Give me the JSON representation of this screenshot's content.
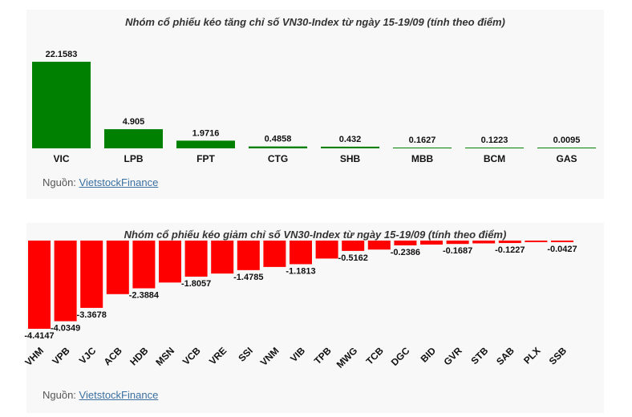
{
  "charts": [
    {
      "id": "top",
      "title": "Nhóm cổ phiếu kéo tăng chỉ số VN30-Index từ ngày 15-19/09 (tính theo điểm)",
      "source_prefix": "Nguồn: ",
      "source_link": "VietstockFinance"
    },
    {
      "id": "bottom",
      "title": "Nhóm cổ phiếu kéo giảm chỉ số VN30-Index từ ngày 15-19/09 (tính theo điểm)",
      "source_prefix": "Nguồn: ",
      "source_link": "VietstockFinance"
    }
  ],
  "chart_data": [
    {
      "type": "bar",
      "title": "Nhóm cổ phiếu kéo tăng chỉ số VN30-Index từ ngày 15-19/09 (tính theo điểm)",
      "categories": [
        "VIC",
        "LPB",
        "FPT",
        "CTG",
        "SHB",
        "MBB",
        "BCM",
        "GAS"
      ],
      "values": [
        22.1583,
        4.905,
        1.9716,
        0.4858,
        0.432,
        0.1627,
        0.1223,
        0.0095
      ],
      "labels": [
        "22.1583",
        "4.905",
        "1.9716",
        "0.4858",
        "0.432",
        "0.1627",
        "0.1223",
        "0.0095"
      ],
      "color": "#008000",
      "ylim": [
        0,
        22.1583
      ],
      "grid": false,
      "legend": "none"
    },
    {
      "type": "bar",
      "title": "Nhóm cổ phiếu kéo giảm chỉ số VN30-Index từ ngày 15-19/09 (tính theo điểm)",
      "categories": [
        "VHM",
        "VPB",
        "VJC",
        "ACB",
        "HDB",
        "MSN",
        "VCB",
        "VRE",
        "SSI",
        "VNM",
        "VIB",
        "TPB",
        "MWG",
        "TCB",
        "DGC",
        "BID",
        "GVR",
        "STB",
        "SAB",
        "PLX",
        "SSB"
      ],
      "values": [
        -4.4147,
        -4.0349,
        -3.3678,
        -2.68,
        -2.3884,
        -2.1,
        -1.8057,
        -1.65,
        -1.4785,
        -1.32,
        -1.1813,
        -0.9,
        -0.5162,
        -0.45,
        -0.2386,
        -0.2,
        -0.1687,
        -0.14,
        -0.1227,
        -0.07,
        -0.0427
      ],
      "labels": [
        "-4.4147",
        "-4.0349",
        "-3.3678",
        "",
        "-2.3884",
        "",
        "-1.8057",
        "",
        "-1.4785",
        "",
        "-1.1813",
        "",
        "-0.5162",
        "",
        "-0.2386",
        "",
        "-0.1687",
        "",
        "-0.1227",
        "",
        "-0.0427"
      ],
      "color": "#ff0000",
      "ylim": [
        -4.4147,
        0
      ],
      "grid": false,
      "legend": "none"
    }
  ]
}
